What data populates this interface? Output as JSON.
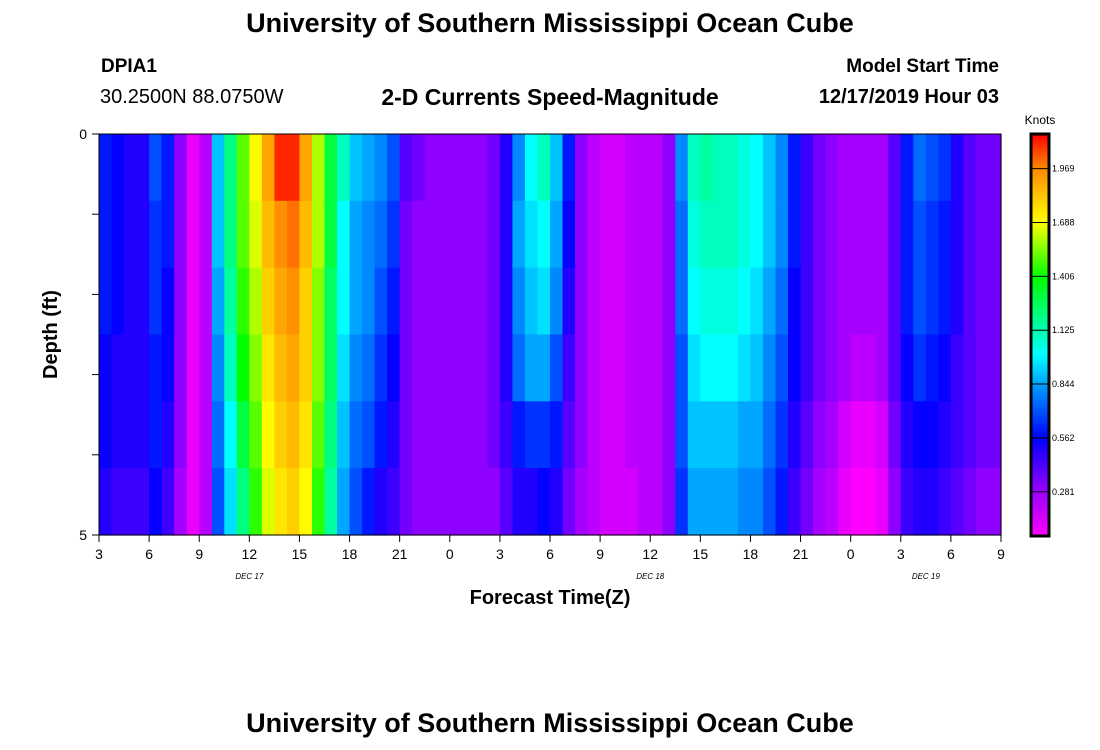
{
  "title": "University of Southern Mississippi Ocean Cube",
  "footer_title": "University of Southern Mississippi Ocean Cube",
  "station": {
    "id": "DPIA1",
    "coords": "30.2500N 88.0750W"
  },
  "model": {
    "start_label": "Model Start Time",
    "start_value": "12/17/2019 Hour 03"
  },
  "chart_data": {
    "type": "heatmap",
    "title": "2-D Currents Speed-Magnitude",
    "xlabel": "Forecast Time(Z)",
    "ylabel": "Depth (ft)",
    "y_ticks": [
      "0",
      "5"
    ],
    "ylim": [
      0,
      5
    ],
    "x_tick_labels": [
      "3",
      "6",
      "9",
      "12",
      "15",
      "18",
      "21",
      "0",
      "3",
      "6",
      "9",
      "12",
      "15",
      "18",
      "21",
      "0",
      "3",
      "6",
      "9"
    ],
    "date_labels": [
      {
        "label": "DEC 17",
        "tick_index": 3
      },
      {
        "label": "DEC 18",
        "tick_index": 11
      },
      {
        "label": "DEC 19",
        "tick_index": 16.5
      }
    ],
    "colorbar": {
      "unit": "Knots",
      "min": 0.05,
      "max": 2.15,
      "tick_values": [
        0.281,
        0.562,
        0.844,
        1.125,
        1.406,
        1.688,
        1.969
      ],
      "tick_labels": [
        "0.281",
        "0.562",
        "0.844",
        "1.125",
        "1.406",
        "1.688",
        "1.969"
      ],
      "stops": [
        {
          "v": 0.05,
          "c": "#ff00ff"
        },
        {
          "v": 0.28,
          "c": "#9900ff"
        },
        {
          "v": 0.56,
          "c": "#0000ff"
        },
        {
          "v": 0.84,
          "c": "#00a0ff"
        },
        {
          "v": 1.0,
          "c": "#00ffff"
        },
        {
          "v": 1.2,
          "c": "#00ff80"
        },
        {
          "v": 1.4,
          "c": "#00ff00"
        },
        {
          "v": 1.69,
          "c": "#ffff00"
        },
        {
          "v": 1.97,
          "c": "#ff8800"
        },
        {
          "v": 2.15,
          "c": "#ff0000"
        }
      ]
    },
    "depth_levels": 6,
    "grid": false,
    "series": [
      {
        "name": "depth-row-1",
        "values": [
          0.6,
          0.55,
          0.5,
          0.5,
          0.7,
          0.6,
          0.3,
          0.1,
          0.2,
          0.9,
          1.2,
          1.5,
          1.7,
          1.9,
          2.1,
          2.1,
          1.9,
          1.6,
          1.3,
          1.1,
          0.9,
          0.85,
          0.8,
          0.7,
          0.4,
          0.35,
          0.3,
          0.3,
          0.3,
          0.3,
          0.3,
          0.35,
          0.5,
          0.8,
          1.0,
          1.1,
          0.9,
          0.6,
          0.3,
          0.2,
          0.15,
          0.15,
          0.2,
          0.2,
          0.2,
          0.3,
          0.8,
          1.1,
          1.15,
          1.1,
          1.1,
          1.05,
          1.0,
          0.9,
          0.8,
          0.6,
          0.45,
          0.35,
          0.3,
          0.25,
          0.25,
          0.25,
          0.25,
          0.4,
          0.6,
          0.75,
          0.7,
          0.65,
          0.5,
          0.4,
          0.35,
          0.35
        ]
      },
      {
        "name": "depth-row-2",
        "values": [
          0.6,
          0.55,
          0.5,
          0.5,
          0.65,
          0.6,
          0.3,
          0.1,
          0.2,
          0.9,
          1.2,
          1.5,
          1.65,
          1.85,
          1.95,
          2.0,
          1.85,
          1.6,
          1.3,
          1.0,
          0.85,
          0.8,
          0.75,
          0.65,
          0.35,
          0.3,
          0.3,
          0.3,
          0.3,
          0.3,
          0.3,
          0.35,
          0.5,
          0.85,
          0.95,
          1.0,
          0.85,
          0.55,
          0.3,
          0.2,
          0.15,
          0.15,
          0.2,
          0.2,
          0.2,
          0.3,
          0.75,
          1.05,
          1.1,
          1.1,
          1.1,
          1.05,
          1.0,
          0.9,
          0.8,
          0.6,
          0.45,
          0.35,
          0.3,
          0.25,
          0.25,
          0.25,
          0.25,
          0.4,
          0.6,
          0.7,
          0.65,
          0.6,
          0.5,
          0.4,
          0.35,
          0.35
        ]
      },
      {
        "name": "depth-row-3",
        "values": [
          0.6,
          0.55,
          0.5,
          0.5,
          0.65,
          0.55,
          0.3,
          0.1,
          0.2,
          0.85,
          1.15,
          1.45,
          1.6,
          1.8,
          1.9,
          1.95,
          1.8,
          1.55,
          1.25,
          1.0,
          0.85,
          0.8,
          0.7,
          0.6,
          0.35,
          0.3,
          0.3,
          0.3,
          0.3,
          0.3,
          0.3,
          0.35,
          0.5,
          0.8,
          0.9,
          0.95,
          0.8,
          0.5,
          0.3,
          0.2,
          0.15,
          0.15,
          0.2,
          0.2,
          0.2,
          0.3,
          0.75,
          1.0,
          1.05,
          1.05,
          1.05,
          1.0,
          0.95,
          0.85,
          0.75,
          0.55,
          0.45,
          0.35,
          0.3,
          0.25,
          0.25,
          0.25,
          0.25,
          0.4,
          0.6,
          0.7,
          0.65,
          0.6,
          0.5,
          0.4,
          0.35,
          0.35
        ]
      },
      {
        "name": "depth-row-4",
        "values": [
          0.55,
          0.5,
          0.5,
          0.5,
          0.6,
          0.55,
          0.3,
          0.1,
          0.2,
          0.8,
          1.1,
          1.4,
          1.55,
          1.75,
          1.85,
          1.9,
          1.8,
          1.55,
          1.25,
          0.95,
          0.8,
          0.75,
          0.65,
          0.55,
          0.35,
          0.3,
          0.3,
          0.3,
          0.3,
          0.3,
          0.3,
          0.35,
          0.5,
          0.75,
          0.85,
          0.85,
          0.7,
          0.45,
          0.3,
          0.2,
          0.15,
          0.15,
          0.2,
          0.2,
          0.2,
          0.3,
          0.7,
          0.95,
          1.0,
          1.0,
          1.0,
          0.95,
          0.9,
          0.8,
          0.7,
          0.55,
          0.45,
          0.35,
          0.3,
          0.25,
          0.2,
          0.2,
          0.25,
          0.4,
          0.55,
          0.65,
          0.6,
          0.55,
          0.45,
          0.4,
          0.35,
          0.35
        ]
      },
      {
        "name": "depth-row-5",
        "values": [
          0.55,
          0.5,
          0.5,
          0.5,
          0.6,
          0.5,
          0.3,
          0.1,
          0.2,
          0.75,
          1.0,
          1.3,
          1.5,
          1.7,
          1.8,
          1.85,
          1.75,
          1.5,
          1.2,
          0.9,
          0.75,
          0.7,
          0.6,
          0.5,
          0.35,
          0.3,
          0.3,
          0.3,
          0.3,
          0.3,
          0.3,
          0.35,
          0.45,
          0.6,
          0.65,
          0.65,
          0.6,
          0.4,
          0.3,
          0.2,
          0.15,
          0.15,
          0.2,
          0.2,
          0.2,
          0.3,
          0.7,
          0.9,
          0.9,
          0.9,
          0.9,
          0.85,
          0.85,
          0.75,
          0.65,
          0.5,
          0.4,
          0.3,
          0.25,
          0.15,
          0.1,
          0.1,
          0.15,
          0.35,
          0.5,
          0.55,
          0.55,
          0.5,
          0.45,
          0.4,
          0.35,
          0.35
        ]
      },
      {
        "name": "depth-row-6",
        "values": [
          0.5,
          0.45,
          0.45,
          0.45,
          0.55,
          0.45,
          0.25,
          0.1,
          0.2,
          0.7,
          0.95,
          1.2,
          1.45,
          1.65,
          1.75,
          1.8,
          1.7,
          1.45,
          1.15,
          0.85,
          0.7,
          0.6,
          0.5,
          0.45,
          0.35,
          0.3,
          0.3,
          0.3,
          0.3,
          0.3,
          0.3,
          0.3,
          0.4,
          0.5,
          0.5,
          0.55,
          0.5,
          0.35,
          0.25,
          0.2,
          0.15,
          0.15,
          0.15,
          0.2,
          0.2,
          0.3,
          0.65,
          0.85,
          0.85,
          0.85,
          0.85,
          0.8,
          0.8,
          0.7,
          0.6,
          0.45,
          0.35,
          0.25,
          0.2,
          0.1,
          0.05,
          0.05,
          0.1,
          0.3,
          0.45,
          0.5,
          0.5,
          0.45,
          0.4,
          0.35,
          0.3,
          0.3
        ]
      }
    ]
  }
}
